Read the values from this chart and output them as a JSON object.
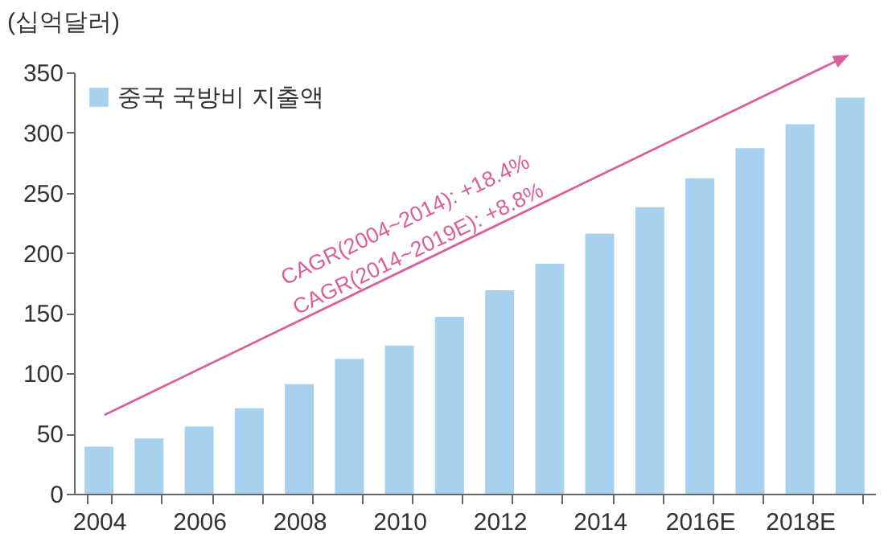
{
  "chart_data": {
    "type": "bar",
    "ylabel": "(십억달러)",
    "categories": [
      "2004",
      null,
      "2006",
      null,
      "2008",
      null,
      "2010",
      null,
      "2012",
      null,
      "2014",
      null,
      "2016E",
      null,
      "2018E",
      null
    ],
    "series": [
      {
        "name": "중국 국방비 지출액",
        "color": "#a8d0ef",
        "values": [
          39,
          46,
          56,
          71,
          91,
          112,
          123,
          147,
          169,
          191,
          216,
          238,
          262,
          287,
          307,
          329
        ]
      }
    ],
    "ylim": [
      0,
      350
    ],
    "yticks": [
      0,
      50,
      100,
      150,
      200,
      250,
      300,
      350
    ],
    "grid": false,
    "legend": "top left",
    "annotations": [
      "CAGR(2004~2014): +18.4%",
      "CAGR(2014~2019E): +8.8%"
    ]
  }
}
